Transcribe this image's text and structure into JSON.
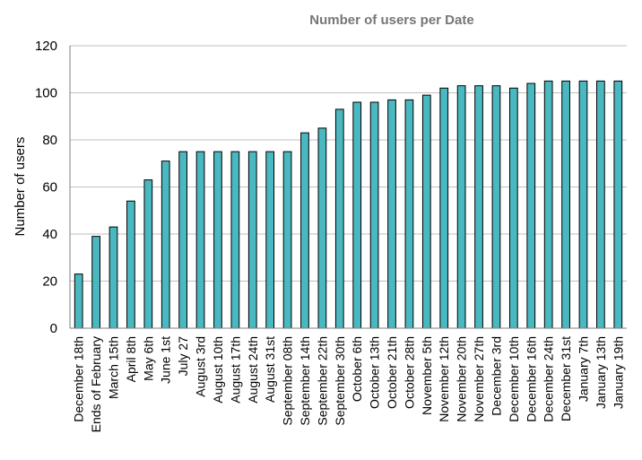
{
  "chart_data": {
    "type": "bar",
    "title": "Number of users per Date",
    "xlabel": "",
    "ylabel": "Number of users",
    "ylim": [
      0,
      120
    ],
    "yticks": [
      0,
      20,
      40,
      60,
      80,
      100,
      120
    ],
    "grid": true,
    "bar_color": "#4ab8c0",
    "categories": [
      "December 18th",
      "Ends of February",
      "March 15th",
      "April 8th",
      "May 6th",
      "June 1st",
      "July 27",
      "August 3rd",
      "August 10th",
      "August 17th",
      "August 24th",
      "August 31st",
      "September 08th",
      "September 14th",
      "September 22th",
      "September 30th",
      "October 6th",
      "October 13th",
      "October 21th",
      "October 28th",
      "November 5th",
      "November 12th",
      "November 20th",
      "November 27th",
      "December 3rd",
      "December 10th",
      "December 16th",
      "December 24th",
      "December 31st",
      "January 7th",
      "January 13th",
      "January 19th"
    ],
    "values": [
      23,
      39,
      43,
      54,
      63,
      71,
      75,
      75,
      75,
      75,
      75,
      75,
      75,
      83,
      85,
      93,
      96,
      96,
      97,
      97,
      99,
      102,
      103,
      103,
      103,
      102,
      104,
      105,
      105,
      105,
      105,
      105
    ]
  }
}
